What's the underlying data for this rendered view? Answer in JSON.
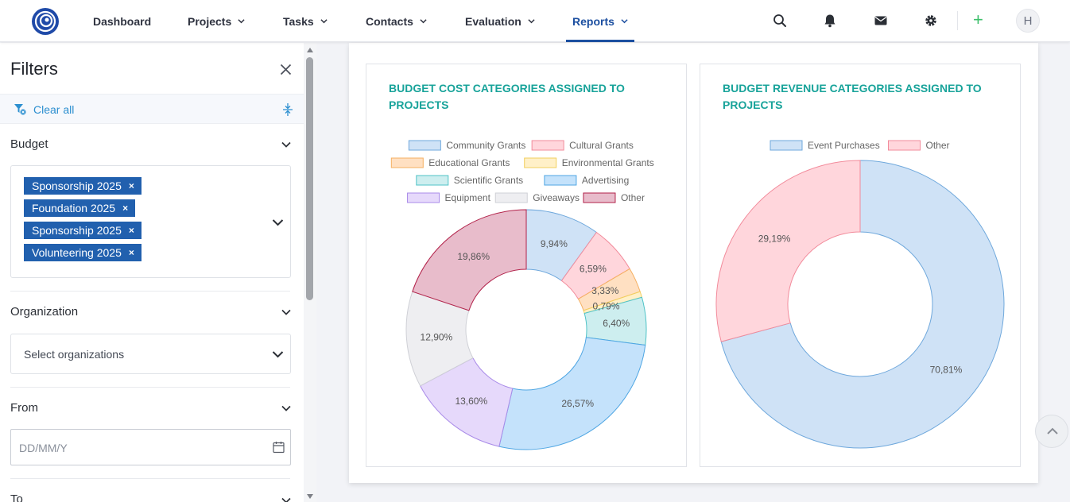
{
  "nav": {
    "items": [
      {
        "label": "Dashboard",
        "has_menu": false
      },
      {
        "label": "Projects",
        "has_menu": true
      },
      {
        "label": "Tasks",
        "has_menu": true
      },
      {
        "label": "Contacts",
        "has_menu": true
      },
      {
        "label": "Evaluation",
        "has_menu": true
      },
      {
        "label": "Reports",
        "has_menu": true,
        "active": true
      }
    ],
    "accent": "#1c4fa0",
    "avatar_initial": "H",
    "icons": [
      "search-icon",
      "bell-icon",
      "mail-icon",
      "gear-icon",
      "plus-icon"
    ]
  },
  "filters": {
    "title": "Filters",
    "clear_all": "Clear all",
    "budget": {
      "label": "Budget",
      "selected": [
        "Sponsorship 2025",
        "Foundation 2025",
        "Sponsorship 2025",
        "Volunteering 2025"
      ]
    },
    "organization": {
      "label": "Organization",
      "placeholder": "Select organizations"
    },
    "from": {
      "label": "From",
      "placeholder": "DD/MM/Y"
    },
    "to": {
      "label": "To"
    }
  },
  "charts": {
    "cost": {
      "title": "BUDGET COST CATEGORIES ASSIGNED TO PROJECTS"
    },
    "revenue": {
      "title": "BUDGET REVENUE CATEGORIES ASSIGNED TO PROJECTS"
    }
  },
  "chart_data": [
    {
      "type": "pie",
      "title": "BUDGET COST CATEGORIES ASSIGNED TO PROJECTS",
      "donut": true,
      "legend": "top",
      "categories": [
        "Community Grants",
        "Cultural Grants",
        "Educational Grants",
        "Environmental Grants",
        "Scientific Grants",
        "Advertising",
        "Equipment",
        "Giveaways",
        "Other"
      ],
      "values": [
        9.94,
        6.59,
        3.33,
        0.79,
        6.4,
        26.57,
        13.6,
        12.9,
        19.86
      ],
      "labels": [
        "9,94%",
        "6,59%",
        "3,33%",
        "0,79%",
        "6,40%",
        "26,57%",
        "13,60%",
        "12,90%",
        "19,86%"
      ],
      "colors": [
        "#cfe2f6",
        "#ffd6dc",
        "#ffe0c2",
        "#fff0c8",
        "#cdeeef",
        "#c4e2fb",
        "#e6d9fb",
        "#eeeef1",
        "#e8bccb"
      ],
      "borders": [
        "#6fa8dc",
        "#f28b9b",
        "#f5b062",
        "#f2cf5e",
        "#4fc3c7",
        "#4fa6e3",
        "#a98be8",
        "#cfd0d6",
        "#b2224a"
      ]
    },
    {
      "type": "pie",
      "title": "BUDGET REVENUE CATEGORIES ASSIGNED TO PROJECTS",
      "donut": true,
      "legend": "top",
      "categories": [
        "Event Purchases",
        "Other"
      ],
      "values": [
        70.81,
        29.19
      ],
      "labels": [
        "70,81%",
        "29,19%"
      ],
      "colors": [
        "#cfe2f6",
        "#ffd6dc"
      ],
      "borders": [
        "#6fa8dc",
        "#f28b9b"
      ]
    }
  ]
}
